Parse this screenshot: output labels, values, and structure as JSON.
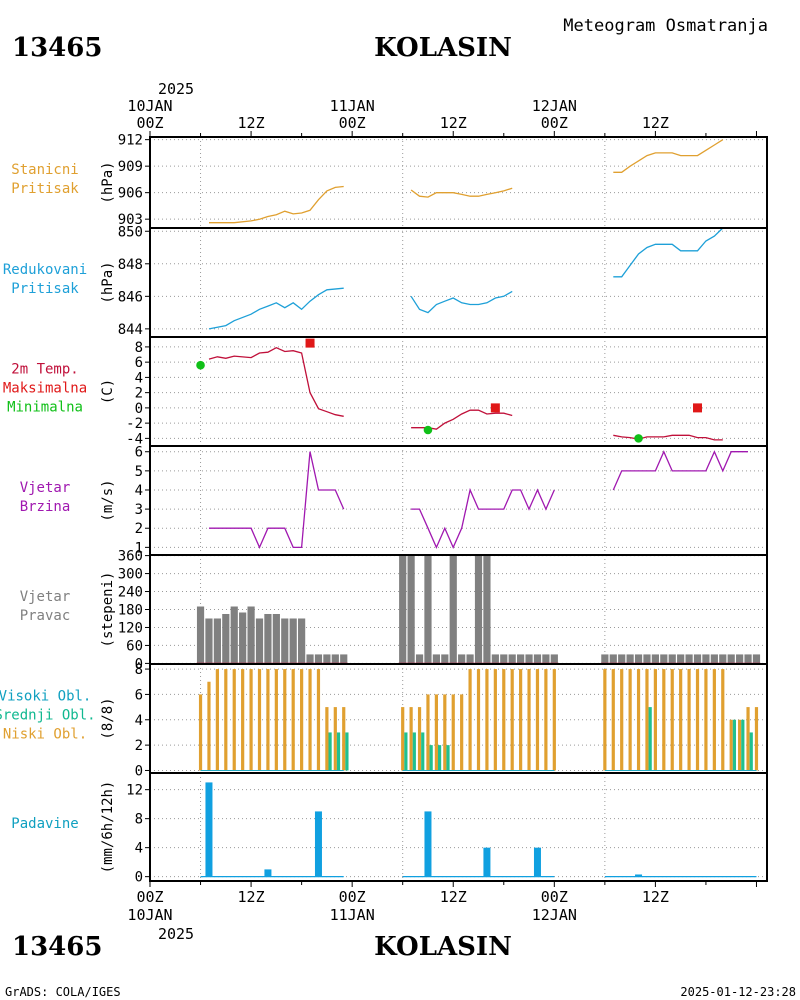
{
  "header": {
    "station_id": "13465",
    "station_name": "KOLASIN",
    "subtitle": "Meteogram Osmatranja"
  },
  "time_axis": {
    "top_year": "2025",
    "bottom_year": "2025",
    "day_labels": [
      "10JAN",
      "11JAN",
      "12JAN"
    ],
    "hour_labels": [
      "00Z",
      "12Z",
      "00Z",
      "12Z",
      "00Z",
      "12Z"
    ]
  },
  "footer": {
    "left": "GrADS: COLA/IGES",
    "right": "2025-01-12-23:28"
  },
  "chart_data": [
    {
      "type": "line",
      "labels": [
        "Stanicni",
        "Pritisak"
      ],
      "ylabel": "(hPa)",
      "ylim": [
        902,
        912.3
      ],
      "yticks": [
        903,
        906,
        909,
        912
      ],
      "color": "#e0a030",
      "segments": [
        [
          [
            7,
            902.6
          ],
          [
            10,
            902.6
          ],
          [
            12,
            902.8
          ],
          [
            13,
            903.0
          ],
          [
            14,
            903.3
          ],
          [
            15,
            903.5
          ],
          [
            16,
            903.9
          ],
          [
            17,
            903.6
          ],
          [
            18,
            903.7
          ],
          [
            19,
            904.0
          ],
          [
            20,
            905.2
          ],
          [
            21,
            906.2
          ],
          [
            22,
            906.6
          ],
          [
            23,
            906.7
          ]
        ],
        [
          [
            31,
            906.3
          ],
          [
            32,
            905.6
          ],
          [
            33,
            905.5
          ],
          [
            34,
            906.0
          ],
          [
            35,
            906.0
          ],
          [
            36,
            906.0
          ],
          [
            37,
            905.8
          ],
          [
            38,
            905.6
          ],
          [
            39,
            905.6
          ],
          [
            40,
            905.8
          ],
          [
            41,
            906.0
          ],
          [
            42,
            906.2
          ],
          [
            43,
            906.5
          ]
        ],
        [
          [
            55,
            908.3
          ],
          [
            56,
            908.3
          ],
          [
            57,
            909.0
          ],
          [
            58,
            909.6
          ],
          [
            59,
            910.2
          ],
          [
            60,
            910.5
          ],
          [
            61,
            910.5
          ],
          [
            62,
            910.5
          ],
          [
            63,
            910.2
          ],
          [
            64,
            910.2
          ],
          [
            65,
            910.2
          ],
          [
            66,
            910.8
          ],
          [
            67,
            911.4
          ],
          [
            68,
            912.0
          ]
        ]
      ]
    },
    {
      "type": "line",
      "labels": [
        "Redukovani",
        "Pritisak"
      ],
      "ylabel": "(hPa)",
      "ylim": [
        843.5,
        850.2
      ],
      "yticks": [
        844,
        846,
        848,
        850
      ],
      "color": "#1ea0d8",
      "segments": [
        [
          [
            7,
            844.0
          ],
          [
            9,
            844.2
          ],
          [
            10,
            844.5
          ],
          [
            12,
            844.9
          ],
          [
            13,
            845.2
          ],
          [
            14,
            845.4
          ],
          [
            15,
            845.6
          ],
          [
            16,
            845.3
          ],
          [
            17,
            845.6
          ],
          [
            18,
            845.2
          ],
          [
            19,
            845.7
          ],
          [
            20,
            846.1
          ],
          [
            21,
            846.4
          ],
          [
            23,
            846.5
          ]
        ],
        [
          [
            31,
            846.0
          ],
          [
            32,
            845.2
          ],
          [
            33,
            845.0
          ],
          [
            34,
            845.5
          ],
          [
            35,
            845.7
          ],
          [
            36,
            845.9
          ],
          [
            37,
            845.6
          ],
          [
            38,
            845.5
          ],
          [
            39,
            845.5
          ],
          [
            40,
            845.6
          ],
          [
            41,
            845.9
          ],
          [
            42,
            846.0
          ],
          [
            43,
            846.3
          ]
        ],
        [
          [
            55,
            847.2
          ],
          [
            56,
            847.2
          ],
          [
            57,
            847.9
          ],
          [
            58,
            848.6
          ],
          [
            59,
            849.0
          ],
          [
            60,
            849.2
          ],
          [
            61,
            849.2
          ],
          [
            62,
            849.2
          ],
          [
            63,
            848.8
          ],
          [
            64,
            848.8
          ],
          [
            65,
            848.8
          ],
          [
            66,
            849.4
          ],
          [
            67,
            849.7
          ],
          [
            68,
            850.2
          ]
        ]
      ]
    },
    {
      "type": "line",
      "labels": [
        "2m Temp.",
        "Maksimalna",
        "Minimalna"
      ],
      "label_colors": [
        "#c0103a",
        "#e01818",
        "#10c018"
      ],
      "ylabel": "(C)",
      "ylim": [
        -5,
        9.3
      ],
      "yticks": [
        -4,
        -2,
        0,
        2,
        4,
        6,
        8
      ],
      "color": "#c0103a",
      "segments": [
        [
          [
            7,
            6.4
          ],
          [
            8,
            6.7
          ],
          [
            9,
            6.5
          ],
          [
            10,
            6.8
          ],
          [
            12,
            6.6
          ],
          [
            13,
            7.2
          ],
          [
            14,
            7.3
          ],
          [
            15,
            7.9
          ],
          [
            16,
            7.4
          ],
          [
            17,
            7.5
          ],
          [
            18,
            7.2
          ],
          [
            19,
            2.0
          ],
          [
            20,
            -0.1
          ],
          [
            21,
            -0.5
          ],
          [
            22,
            -0.9
          ],
          [
            23,
            -1.1
          ]
        ],
        [
          [
            31,
            -2.6
          ],
          [
            32,
            -2.6
          ],
          [
            33,
            -2.6
          ],
          [
            34,
            -2.8
          ],
          [
            35,
            -2.0
          ],
          [
            36,
            -1.5
          ],
          [
            37,
            -0.8
          ],
          [
            38,
            -0.3
          ],
          [
            39,
            -0.3
          ],
          [
            40,
            -0.8
          ],
          [
            41,
            -0.7
          ],
          [
            42,
            -0.7
          ],
          [
            43,
            -1.0
          ]
        ],
        [
          [
            55,
            -3.6
          ],
          [
            56,
            -3.8
          ],
          [
            57,
            -3.9
          ],
          [
            58,
            -4.1
          ],
          [
            59,
            -3.8
          ],
          [
            60,
            -3.8
          ],
          [
            61,
            -3.8
          ],
          [
            62,
            -3.6
          ],
          [
            63,
            -3.6
          ],
          [
            64,
            -3.6
          ],
          [
            65,
            -3.9
          ],
          [
            66,
            -3.9
          ],
          [
            67,
            -4.2
          ],
          [
            68,
            -4.2
          ]
        ]
      ],
      "max_points": [
        [
          19,
          8.5
        ],
        [
          41,
          0.0
        ],
        [
          65,
          0.0
        ]
      ],
      "min_points": [
        [
          6,
          5.6
        ],
        [
          33,
          -2.9
        ],
        [
          58,
          -4.0
        ]
      ],
      "max_color": "#e01818",
      "min_color": "#10c018"
    },
    {
      "type": "line",
      "labels": [
        "Vjetar",
        "Brzina"
      ],
      "ylabel": "(m/s)",
      "ylim": [
        0.6,
        6.3
      ],
      "yticks": [
        1,
        2,
        3,
        4,
        5,
        6
      ],
      "color": "#a018b0",
      "segments": [
        [
          [
            7,
            2
          ],
          [
            8,
            2
          ],
          [
            9,
            2
          ],
          [
            10,
            2
          ],
          [
            11,
            2
          ],
          [
            12,
            2
          ],
          [
            13,
            1
          ],
          [
            14,
            2
          ],
          [
            15,
            2
          ],
          [
            16,
            2
          ],
          [
            17,
            1
          ],
          [
            18,
            1
          ],
          [
            19,
            6
          ],
          [
            20,
            4
          ],
          [
            21,
            4
          ],
          [
            22,
            4
          ],
          [
            23,
            3
          ]
        ],
        [
          [
            31,
            3
          ],
          [
            32,
            3
          ],
          [
            33,
            2
          ],
          [
            34,
            1
          ],
          [
            35,
            2
          ],
          [
            36,
            1
          ],
          [
            37,
            2
          ],
          [
            38,
            4
          ],
          [
            39,
            3
          ],
          [
            40,
            3
          ],
          [
            41,
            3
          ],
          [
            42,
            3
          ],
          [
            43,
            4
          ],
          [
            44,
            4
          ],
          [
            45,
            3
          ],
          [
            46,
            4
          ],
          [
            47,
            3
          ],
          [
            48,
            4
          ]
        ],
        [
          [
            55,
            4
          ],
          [
            56,
            5
          ],
          [
            57,
            5
          ],
          [
            58,
            5
          ],
          [
            59,
            5
          ],
          [
            60,
            5
          ],
          [
            61,
            6
          ],
          [
            62,
            5
          ],
          [
            63,
            5
          ],
          [
            64,
            5
          ],
          [
            65,
            5
          ],
          [
            66,
            5
          ],
          [
            67,
            6
          ],
          [
            68,
            5
          ],
          [
            69,
            6
          ],
          [
            70,
            6
          ],
          [
            71,
            6
          ]
        ]
      ]
    },
    {
      "type": "bar",
      "labels": [
        "Vjetar",
        "Pravac"
      ],
      "ylabel": "(stepeni)",
      "ylim": [
        -2,
        362
      ],
      "yticks": [
        0,
        60,
        120,
        180,
        240,
        300,
        360
      ],
      "color": "#808080",
      "baseline_color": "#c0103a",
      "bars": [
        [
          6,
          190
        ],
        [
          7,
          150
        ],
        [
          8,
          150
        ],
        [
          9,
          165
        ],
        [
          10,
          190
        ],
        [
          11,
          170
        ],
        [
          12,
          190
        ],
        [
          13,
          150
        ],
        [
          14,
          165
        ],
        [
          15,
          165
        ],
        [
          16,
          150
        ],
        [
          17,
          150
        ],
        [
          18,
          150
        ],
        [
          19,
          30
        ],
        [
          20,
          30
        ],
        [
          21,
          30
        ],
        [
          22,
          30
        ],
        [
          23,
          30
        ],
        [
          30,
          360
        ],
        [
          31,
          360
        ],
        [
          32,
          30
        ],
        [
          33,
          360
        ],
        [
          34,
          30
        ],
        [
          35,
          30
        ],
        [
          36,
          360
        ],
        [
          37,
          30
        ],
        [
          38,
          30
        ],
        [
          39,
          360
        ],
        [
          40,
          360
        ],
        [
          41,
          30
        ],
        [
          42,
          30
        ],
        [
          43,
          30
        ],
        [
          44,
          30
        ],
        [
          45,
          30
        ],
        [
          46,
          30
        ],
        [
          47,
          30
        ],
        [
          48,
          30
        ],
        [
          54,
          30
        ],
        [
          55,
          30
        ],
        [
          56,
          30
        ],
        [
          57,
          30
        ],
        [
          58,
          30
        ],
        [
          59,
          30
        ],
        [
          60,
          30
        ],
        [
          61,
          30
        ],
        [
          62,
          30
        ],
        [
          63,
          30
        ],
        [
          64,
          30
        ],
        [
          65,
          30
        ],
        [
          66,
          30
        ],
        [
          67,
          30
        ],
        [
          68,
          30
        ],
        [
          69,
          30
        ],
        [
          70,
          30
        ],
        [
          71,
          30
        ],
        [
          72,
          30
        ]
      ]
    },
    {
      "type": "bar",
      "labels": [
        "Visoki Obl.",
        "Srednji Obl.",
        "Niski Obl."
      ],
      "label_colors": [
        "#10a0c0",
        "#10b890",
        "#e0a030"
      ],
      "ylabel": "(8/8)",
      "ylim": [
        -0.2,
        8.4
      ],
      "yticks": [
        0,
        2,
        4,
        6,
        8
      ],
      "low_color": "#e0a030",
      "mid_color": "#20c090",
      "cloud_times": [
        6,
        7,
        8,
        9,
        10,
        11,
        12,
        13,
        14,
        15,
        16,
        17,
        18,
        19,
        20,
        21,
        22,
        23,
        30,
        31,
        32,
        33,
        34,
        35,
        36,
        37,
        38,
        39,
        40,
        41,
        42,
        43,
        44,
        45,
        46,
        47,
        48,
        54,
        55,
        56,
        57,
        58,
        59,
        60,
        61,
        62,
        63,
        64,
        65,
        66,
        67,
        68,
        69,
        70,
        71,
        72
      ],
      "low": [
        6,
        7,
        8,
        8,
        8,
        8,
        8,
        8,
        8,
        8,
        8,
        8,
        8,
        8,
        8,
        5,
        5,
        5,
        5,
        5,
        5,
        6,
        6,
        6,
        6,
        6,
        8,
        8,
        8,
        8,
        8,
        8,
        8,
        8,
        8,
        8,
        8,
        8,
        8,
        8,
        8,
        8,
        8,
        8,
        8,
        8,
        8,
        8,
        8,
        8,
        8,
        8,
        4,
        4,
        5,
        5
      ],
      "mid": [
        0,
        0,
        0,
        0,
        0,
        0,
        0,
        0,
        0,
        0,
        0,
        0,
        0,
        0,
        0,
        3,
        3,
        3,
        3,
        3,
        3,
        2,
        2,
        2,
        0,
        0,
        0,
        0,
        0,
        0,
        0,
        0,
        0,
        0,
        0,
        0,
        0,
        0,
        0,
        0,
        0,
        0,
        5,
        0,
        0,
        0,
        0,
        0,
        0,
        0,
        0,
        0,
        4,
        4,
        3,
        0
      ]
    },
    {
      "type": "bar",
      "labels": [
        "Padavine"
      ],
      "label_colors": [
        "#10a0c0"
      ],
      "ylabel": "(mm/6h/12h)",
      "ylim": [
        -0.6,
        14.3
      ],
      "yticks": [
        0,
        4,
        8,
        12
      ],
      "color": "#10a0e0",
      "line_segments": [
        [
          6,
          23
        ],
        [
          30,
          48
        ],
        [
          54,
          72
        ]
      ],
      "bars": [
        [
          7,
          13
        ],
        [
          14,
          1
        ],
        [
          20,
          9
        ],
        [
          33,
          9
        ],
        [
          40,
          4
        ],
        [
          46,
          4
        ],
        [
          58,
          0.3
        ]
      ]
    }
  ]
}
